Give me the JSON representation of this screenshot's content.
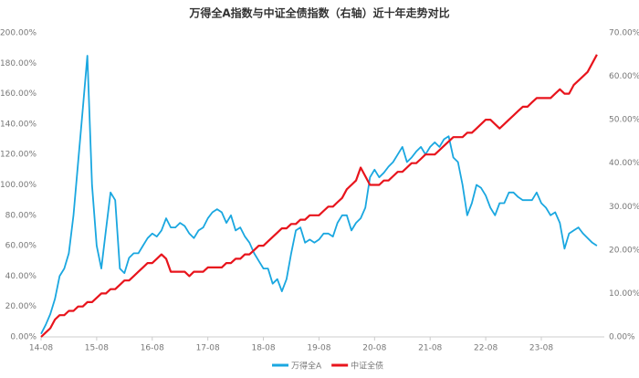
{
  "chart_data": {
    "type": "line",
    "title": "万得全A指数与中证全债指数（右轴）近十年走势对比",
    "categories": [
      "14-08",
      null,
      null,
      null,
      null,
      null,
      null,
      null,
      null,
      null,
      null,
      null,
      "15-08",
      null,
      null,
      null,
      null,
      null,
      null,
      null,
      null,
      null,
      null,
      null,
      "16-08",
      null,
      null,
      null,
      null,
      null,
      null,
      null,
      null,
      null,
      null,
      null,
      "17-08",
      null,
      null,
      null,
      null,
      null,
      null,
      null,
      null,
      null,
      null,
      null,
      "18-08",
      null,
      null,
      null,
      null,
      null,
      null,
      null,
      null,
      null,
      null,
      null,
      "19-08",
      null,
      null,
      null,
      null,
      null,
      null,
      null,
      null,
      null,
      null,
      null,
      "20-08",
      null,
      null,
      null,
      null,
      null,
      null,
      null,
      null,
      null,
      null,
      null,
      "21-08",
      null,
      null,
      null,
      null,
      null,
      null,
      null,
      null,
      null,
      null,
      null,
      "22-08",
      null,
      null,
      null,
      null,
      null,
      null,
      null,
      null,
      null,
      null,
      null,
      "23-08",
      null,
      null,
      null,
      null,
      null,
      null,
      null,
      null,
      null,
      null,
      null,
      null
    ],
    "series": [
      {
        "name": "万得全A",
        "color": "#1aa7e0",
        "axis": "y",
        "values": [
          2,
          8,
          15,
          25,
          40,
          45,
          55,
          80,
          115,
          150,
          185,
          100,
          60,
          45,
          70,
          95,
          90,
          45,
          42,
          52,
          55,
          55,
          60,
          65,
          68,
          66,
          70,
          78,
          72,
          72,
          75,
          73,
          68,
          65,
          70,
          72,
          78,
          82,
          84,
          82,
          75,
          80,
          70,
          72,
          66,
          62,
          55,
          50,
          45,
          45,
          35,
          38,
          30,
          38,
          55,
          70,
          72,
          62,
          64,
          62,
          64,
          68,
          68,
          66,
          75,
          80,
          80,
          70,
          75,
          78,
          85,
          105,
          110,
          105,
          108,
          112,
          115,
          120,
          125,
          115,
          118,
          122,
          125,
          120,
          125,
          128,
          125,
          130,
          132,
          118,
          115,
          100,
          80,
          88,
          100,
          98,
          93,
          85,
          80,
          88,
          88,
          95,
          95,
          92,
          90,
          90,
          90,
          95,
          88,
          85,
          80,
          82,
          75,
          58,
          68,
          70,
          72,
          68,
          65,
          62,
          60
        ]
      },
      {
        "name": "中证全债",
        "color": "#e8141c",
        "axis": "y2",
        "values": [
          0,
          1,
          2,
          4,
          5,
          5,
          6,
          6,
          7,
          7,
          8,
          8,
          9,
          10,
          10,
          11,
          11,
          12,
          13,
          13,
          14,
          15,
          16,
          17,
          17,
          18,
          19,
          18,
          15,
          15,
          15,
          15,
          14,
          15,
          15,
          15,
          16,
          16,
          16,
          16,
          17,
          17,
          18,
          18,
          19,
          19,
          20,
          21,
          21,
          22,
          23,
          24,
          25,
          25,
          26,
          26,
          27,
          27,
          28,
          28,
          28,
          29,
          30,
          30,
          31,
          32,
          34,
          35,
          36,
          39,
          37,
          35,
          35,
          35,
          36,
          36,
          37,
          38,
          38,
          39,
          40,
          40,
          41,
          42,
          42,
          42,
          43,
          44,
          45,
          46,
          46,
          46,
          47,
          47,
          48,
          49,
          50,
          50,
          49,
          48,
          49,
          50,
          51,
          52,
          53,
          53,
          54,
          55,
          55,
          55,
          55,
          56,
          57,
          56,
          56,
          58,
          59,
          60,
          61,
          63,
          65
        ]
      }
    ],
    "ylim": [
      0,
      200
    ],
    "yticks": [
      {
        "value": 0,
        "label": "0.00%"
      },
      {
        "value": 20,
        "label": "20.00%"
      },
      {
        "value": 40,
        "label": "40.00%"
      },
      {
        "value": 60,
        "label": "60.00%"
      },
      {
        "value": 80,
        "label": "80.00%"
      },
      {
        "value": 100,
        "label": "100.00%"
      },
      {
        "value": 120,
        "label": "120.00%"
      },
      {
        "value": 140,
        "label": "140.00%"
      },
      {
        "value": 160,
        "label": "160.00%"
      },
      {
        "value": 180,
        "label": "180.00%"
      },
      {
        "value": 200,
        "label": "200.00%"
      }
    ],
    "y2lim": [
      0,
      70
    ],
    "y2ticks": [
      {
        "value": 0,
        "label": "0.00%"
      },
      {
        "value": 10,
        "label": "10.00%"
      },
      {
        "value": 20,
        "label": "20.00%"
      },
      {
        "value": 30,
        "label": "30.00%"
      },
      {
        "value": 40,
        "label": "40.00%"
      },
      {
        "value": 50,
        "label": "50.00%"
      },
      {
        "value": 60,
        "label": "60.00%"
      },
      {
        "value": 70,
        "label": "70.00%"
      }
    ],
    "grid": false
  }
}
